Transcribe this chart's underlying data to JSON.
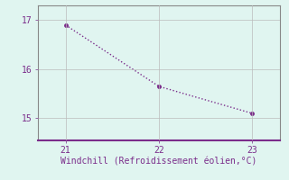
{
  "x": [
    21,
    22,
    23
  ],
  "y": [
    16.9,
    15.65,
    15.1
  ],
  "line_color": "#7B2D8B",
  "marker_color": "#7B2D8B",
  "background_color": "#E0F5F0",
  "grid_color": "#BBBBBB",
  "xlabel": "Windchill (Refroidissement éolien,°C)",
  "xlabel_color": "#7B2D8B",
  "tick_color": "#7B2D8B",
  "spine_color": "#888888",
  "bottom_spine_color": "#7B2D8B",
  "xlim": [
    20.7,
    23.3
  ],
  "ylim": [
    14.55,
    17.3
  ],
  "xticks": [
    21,
    22,
    23
  ],
  "yticks": [
    15,
    16,
    17
  ],
  "ytick_labels": [
    "15",
    "16",
    "17"
  ],
  "figsize": [
    3.2,
    2.0
  ],
  "dpi": 100
}
